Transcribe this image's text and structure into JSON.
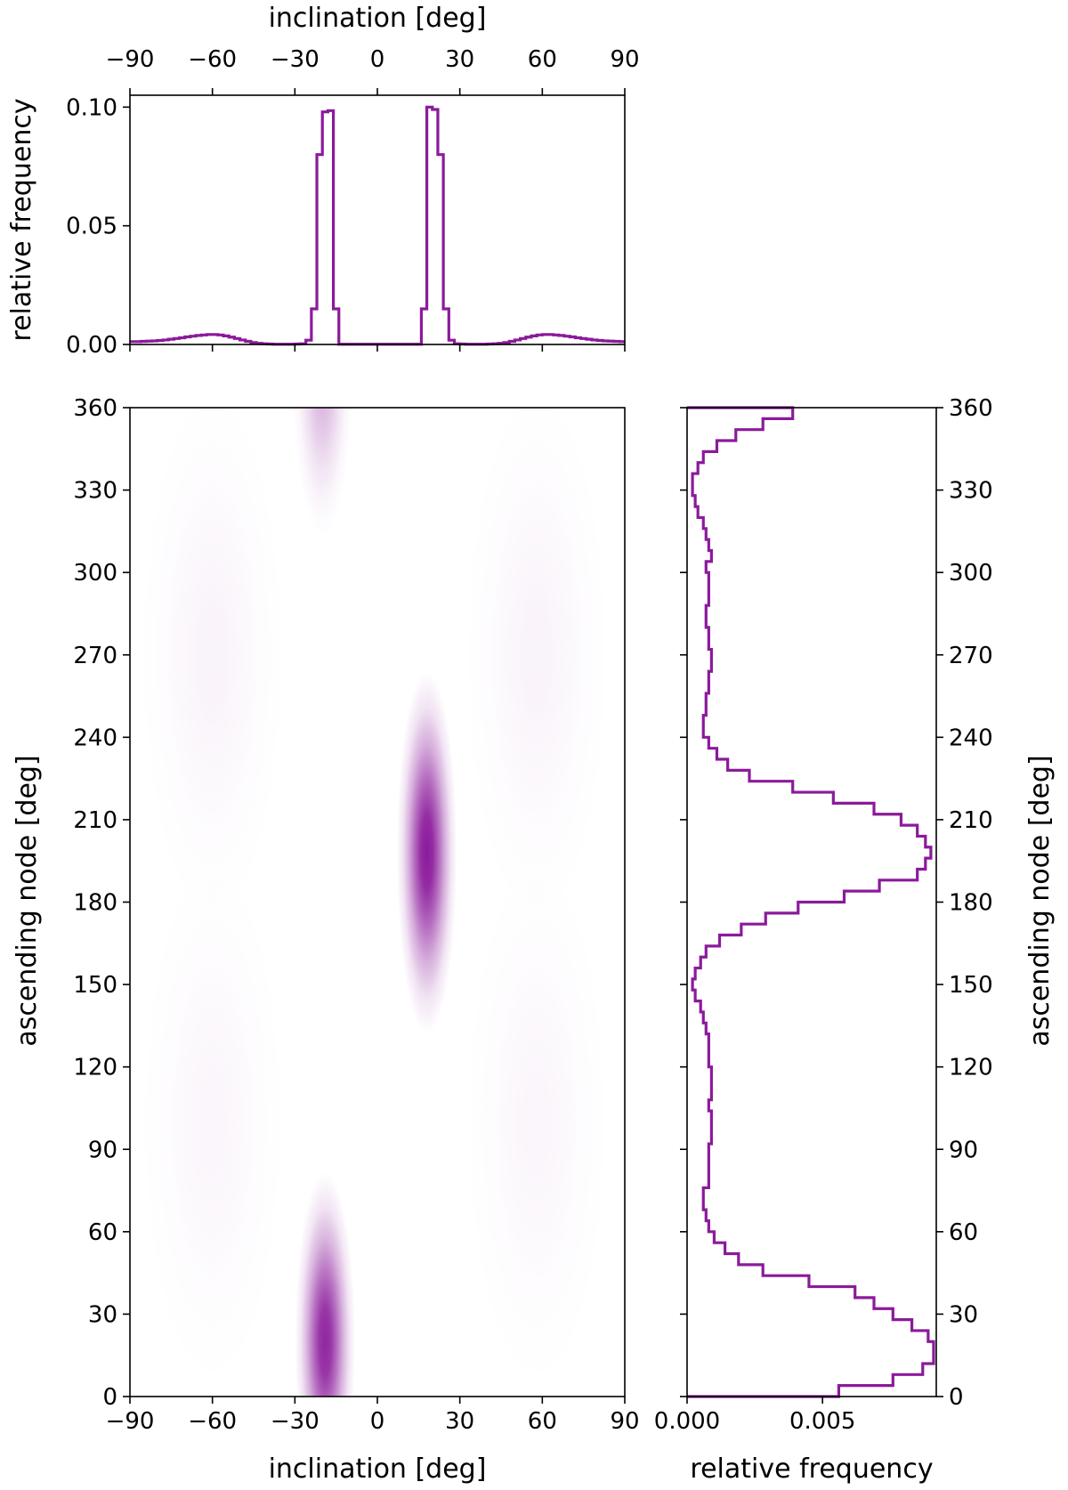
{
  "chart_data": [
    {
      "type": "histogram",
      "panel": "top",
      "xlabel": "inclination [deg]",
      "ylabel": "relative frequency",
      "xlim": [
        -90,
        90
      ],
      "ylim": [
        0,
        0.105
      ],
      "xticks": [
        "−90",
        "−60",
        "−30",
        "0",
        "30",
        "60",
        "90"
      ],
      "xtick_values": [
        -90,
        -60,
        -30,
        0,
        30,
        60,
        90
      ],
      "yticks": [
        "0.00",
        "0.05",
        "0.10"
      ],
      "ytick_values": [
        0,
        0.05,
        0.1
      ],
      "color": "#8b1a9b",
      "bin_width": 2,
      "x": [
        -90,
        -88,
        -86,
        -84,
        -82,
        -80,
        -78,
        -76,
        -74,
        -72,
        -70,
        -68,
        -66,
        -64,
        -62,
        -60,
        -58,
        -56,
        -54,
        -52,
        -50,
        -48,
        -46,
        -44,
        -42,
        -40,
        -38,
        -36,
        -34,
        -32,
        -30,
        -28,
        -26,
        -24,
        -22,
        -20,
        -18,
        -16,
        -14,
        -12,
        -10,
        -8,
        -6,
        -4,
        -2,
        0,
        2,
        4,
        6,
        8,
        10,
        12,
        14,
        16,
        18,
        20,
        22,
        24,
        26,
        28,
        30,
        32,
        34,
        36,
        38,
        40,
        42,
        44,
        46,
        48,
        50,
        52,
        54,
        56,
        58,
        60,
        62,
        64,
        66,
        68,
        70,
        72,
        74,
        76,
        78,
        80,
        82,
        84,
        86,
        88
      ],
      "values": [
        0.0012,
        0.0012,
        0.0013,
        0.0014,
        0.0015,
        0.0017,
        0.0019,
        0.0022,
        0.0025,
        0.0028,
        0.0032,
        0.0035,
        0.0038,
        0.004,
        0.0042,
        0.0042,
        0.004,
        0.0036,
        0.0031,
        0.0025,
        0.0019,
        0.0013,
        0.0008,
        0.0005,
        0.0003,
        0.0002,
        0.0001,
        0.0001,
        0.0001,
        0.0001,
        0.0002,
        0.0003,
        0.0018,
        0.015,
        0.08,
        0.098,
        0.0985,
        0.015,
        0.0001,
        0.0001,
        0.0001,
        0.0001,
        0.0001,
        0.0001,
        0.0001,
        0.0001,
        0.0001,
        0.0001,
        0.0001,
        0.0001,
        0.0001,
        0.0001,
        0.0001,
        0.015,
        0.1,
        0.099,
        0.08,
        0.015,
        0.0018,
        0.0003,
        0.0002,
        0.0001,
        0.0001,
        0.0001,
        0.0001,
        0.0002,
        0.0003,
        0.0005,
        0.0008,
        0.0013,
        0.0019,
        0.0025,
        0.0031,
        0.0036,
        0.004,
        0.0042,
        0.0042,
        0.004,
        0.0038,
        0.0035,
        0.0032,
        0.0028,
        0.0025,
        0.0022,
        0.0019,
        0.0017,
        0.0015,
        0.0014,
        0.0013,
        0.0012
      ]
    },
    {
      "type": "heatmap",
      "panel": "main",
      "xlabel": "inclination [deg]",
      "ylabel": "ascending node [deg]",
      "xlim": [
        -90,
        90
      ],
      "ylim": [
        0,
        360
      ],
      "xticks": [
        "−90",
        "−60",
        "−30",
        "0",
        "30",
        "60",
        "90"
      ],
      "xtick_values": [
        -90,
        -60,
        -30,
        0,
        30,
        60,
        90
      ],
      "yticks": [
        "0",
        "30",
        "60",
        "90",
        "120",
        "150",
        "180",
        "210",
        "240",
        "270",
        "300",
        "330",
        "360"
      ],
      "ytick_values": [
        0,
        30,
        60,
        90,
        120,
        150,
        180,
        210,
        240,
        270,
        300,
        330,
        360
      ],
      "colormap": "white-to-purple",
      "color": "#8b1a9b",
      "density_peaks": [
        {
          "inclination": 18,
          "node": 198,
          "width_inc": 5,
          "width_node": 30,
          "intensity": 1.0
        },
        {
          "inclination": -19,
          "node": 20,
          "width_inc": 5,
          "width_node": 28,
          "intensity": 0.95
        },
        {
          "inclination": -20,
          "node": 375,
          "width_inc": 5,
          "width_node": 28,
          "intensity": 0.35
        },
        {
          "inclination": -60,
          "node": 270,
          "width_inc": 12,
          "width_node": 45,
          "intensity": 0.05
        },
        {
          "inclination": 58,
          "node": 270,
          "width_inc": 12,
          "width_node": 45,
          "intensity": 0.05
        },
        {
          "inclination": -60,
          "node": 100,
          "width_inc": 12,
          "width_node": 45,
          "intensity": 0.04
        },
        {
          "inclination": 58,
          "node": 100,
          "width_inc": 12,
          "width_node": 45,
          "intensity": 0.04
        }
      ]
    },
    {
      "type": "histogram",
      "panel": "right",
      "orientation": "horizontal",
      "xlabel": "relative frequency",
      "ylabel": "ascending node [deg]",
      "xlim": [
        0,
        0.0092
      ],
      "ylim": [
        0,
        360
      ],
      "xticks": [
        "0.000",
        "0.005"
      ],
      "xtick_values": [
        0,
        0.005
      ],
      "yticks": [
        "0",
        "30",
        "60",
        "90",
        "120",
        "150",
        "180",
        "210",
        "240",
        "270",
        "300",
        "330",
        "360"
      ],
      "ytick_values": [
        0,
        30,
        60,
        90,
        120,
        150,
        180,
        210,
        240,
        270,
        300,
        330,
        360
      ],
      "color": "#8b1a9b",
      "bin_width": 4,
      "y": [
        0,
        4,
        8,
        12,
        16,
        20,
        24,
        28,
        32,
        36,
        40,
        44,
        48,
        52,
        56,
        60,
        64,
        68,
        72,
        76,
        80,
        84,
        88,
        92,
        96,
        100,
        104,
        108,
        112,
        116,
        120,
        124,
        128,
        132,
        136,
        140,
        144,
        148,
        152,
        156,
        160,
        164,
        168,
        172,
        176,
        180,
        184,
        188,
        192,
        196,
        200,
        204,
        208,
        212,
        216,
        220,
        224,
        228,
        232,
        236,
        240,
        244,
        248,
        252,
        256,
        260,
        264,
        268,
        272,
        276,
        280,
        284,
        288,
        292,
        296,
        300,
        304,
        308,
        312,
        316,
        320,
        324,
        328,
        332,
        336,
        340,
        344,
        348,
        352,
        356
      ],
      "values": [
        0.0056,
        0.0076,
        0.0087,
        0.0091,
        0.0091,
        0.0089,
        0.0083,
        0.0076,
        0.0069,
        0.0062,
        0.0045,
        0.0028,
        0.0019,
        0.0014,
        0.001,
        0.0008,
        0.0007,
        0.0006,
        0.0006,
        0.0008,
        0.0008,
        0.0008,
        0.0008,
        0.0009,
        0.0009,
        0.0009,
        0.0008,
        0.0009,
        0.0009,
        0.0009,
        0.0008,
        0.0008,
        0.0008,
        0.0007,
        0.0006,
        0.0005,
        0.0003,
        0.0002,
        0.0003,
        0.0005,
        0.0007,
        0.0012,
        0.002,
        0.0029,
        0.0041,
        0.0058,
        0.0071,
        0.0085,
        0.0088,
        0.009,
        0.0088,
        0.0085,
        0.0079,
        0.0069,
        0.0054,
        0.0039,
        0.0023,
        0.0015,
        0.0011,
        0.0008,
        0.0006,
        0.0006,
        0.0007,
        0.0007,
        0.0008,
        0.0008,
        0.0009,
        0.0009,
        0.0008,
        0.0008,
        0.0007,
        0.0007,
        0.0008,
        0.0008,
        0.0008,
        0.0007,
        0.0009,
        0.0008,
        0.0007,
        0.0006,
        0.0004,
        0.0003,
        0.0002,
        0.0002,
        0.0004,
        0.0006,
        0.0011,
        0.0018,
        0.0028,
        0.0039
      ]
    }
  ]
}
